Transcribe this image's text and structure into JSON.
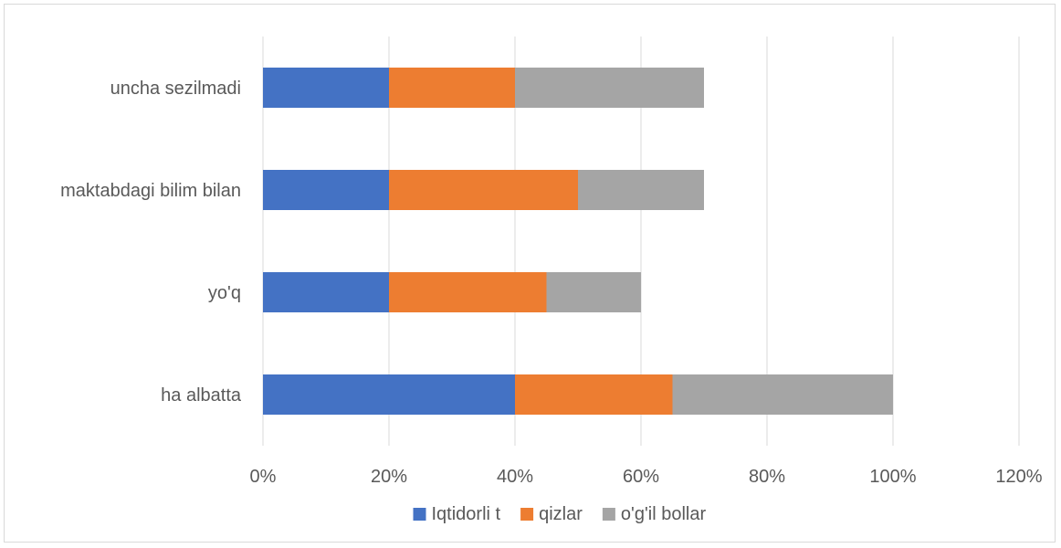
{
  "chart_data": {
    "type": "bar",
    "orientation": "horizontal",
    "stacked": true,
    "categories": [
      "uncha sezilmadi",
      "maktabdagi bilim bilan",
      "yo'q",
      "ha albatta"
    ],
    "series": [
      {
        "name": "Iqtidorli t",
        "color": "#4472C4",
        "values": [
          20,
          20,
          20,
          40
        ]
      },
      {
        "name": "qizlar",
        "color": "#ED7D31",
        "values": [
          20,
          30,
          25,
          25
        ]
      },
      {
        "name": "o'g'il bollar",
        "color": "#A5A5A5",
        "values": [
          30,
          20,
          15,
          35
        ]
      }
    ],
    "xlim": [
      0,
      120
    ],
    "xticks": [
      "0%",
      "20%",
      "40%",
      "60%",
      "80%",
      "100%",
      "120%"
    ],
    "grid": true,
    "legend_position": "bottom",
    "title": "",
    "xlabel": "",
    "ylabel": ""
  }
}
